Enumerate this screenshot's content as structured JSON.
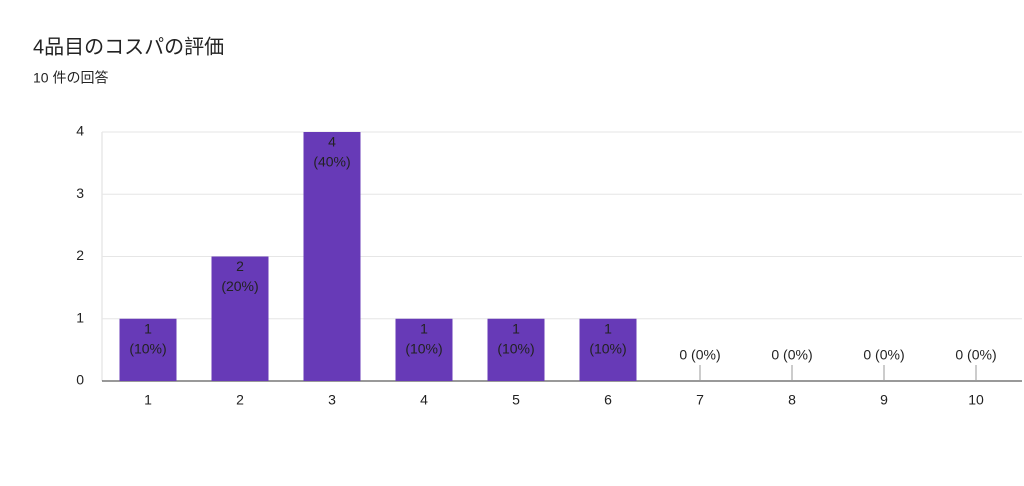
{
  "chart_data": {
    "type": "bar",
    "title": "4品目のコスパの評価",
    "subtitle": "10 件の回答",
    "categories": [
      "1",
      "2",
      "3",
      "4",
      "5",
      "6",
      "7",
      "8",
      "9",
      "10"
    ],
    "values": [
      1,
      2,
      4,
      1,
      1,
      1,
      0,
      0,
      0,
      0
    ],
    "value_labels": [
      [
        "1",
        "(10%)"
      ],
      [
        "2",
        "(20%)"
      ],
      [
        "4",
        "(40%)"
      ],
      [
        "1",
        "(10%)"
      ],
      [
        "1",
        "(10%)"
      ],
      [
        "1",
        "(10%)"
      ],
      [
        "0 (0%)"
      ],
      [
        "0 (0%)"
      ],
      [
        "0 (0%)"
      ],
      [
        "0 (0%)"
      ]
    ],
    "color": "#673ab7",
    "ylim": [
      0,
      4
    ],
    "yticks": [
      0,
      1,
      2,
      3,
      4
    ],
    "grid": true
  }
}
